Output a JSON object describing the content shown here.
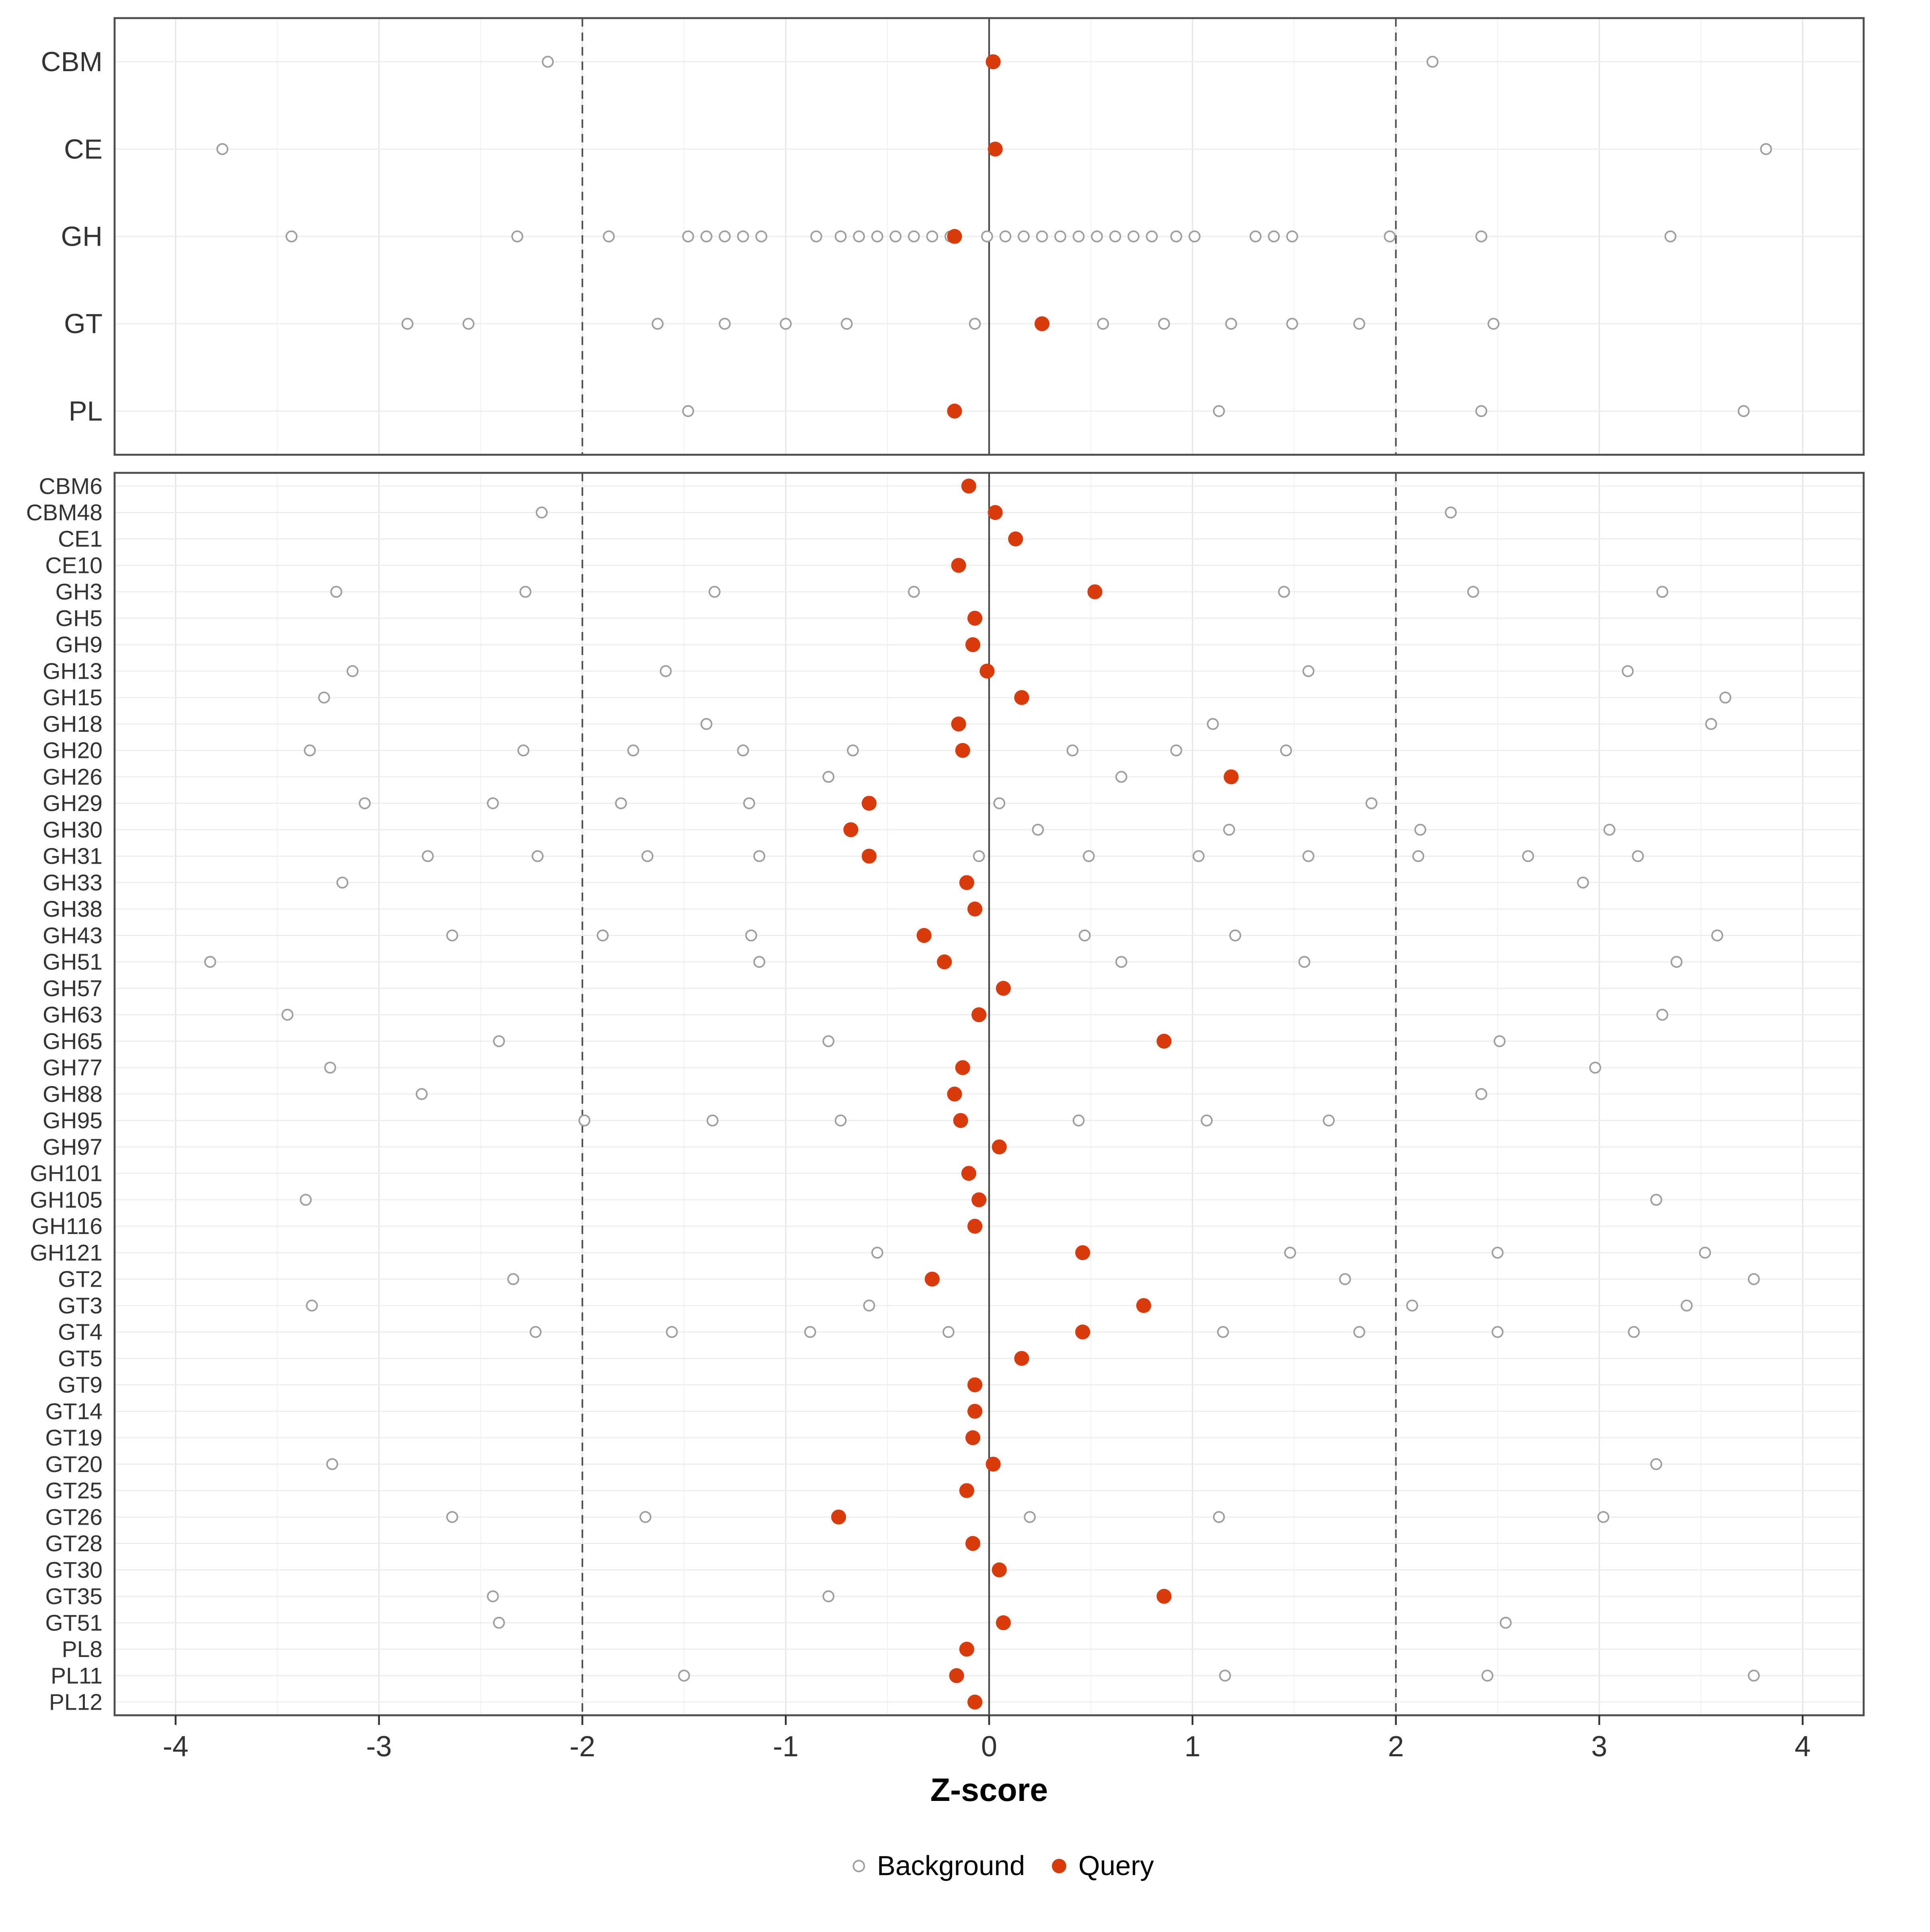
{
  "chart_data": {
    "type": "scatter",
    "title": "",
    "xlabel": "Z-score",
    "ylabel": "",
    "xlim": [
      -4.3,
      4.3
    ],
    "x_ticks": [
      -4,
      -3,
      -2,
      -1,
      0,
      1,
      2,
      3,
      4
    ],
    "grid": true,
    "reference_lines": {
      "solid": [
        0
      ],
      "dashed": [
        -2,
        2
      ]
    },
    "query_color": "#d93b0c",
    "background_stroke_color": "#9e9e9e",
    "legend": {
      "position": "bottom",
      "entries": [
        {
          "label": "Background",
          "marker": "open-circle"
        },
        {
          "label": "Query",
          "marker": "filled-circle"
        }
      ]
    },
    "panels": [
      {
        "name": "family-summary",
        "rows": [
          {
            "label": "CBM",
            "query": 0.02,
            "background": [
              -2.17,
              2.18
            ]
          },
          {
            "label": "CE",
            "query": 0.03,
            "background": [
              -3.77,
              3.82
            ]
          },
          {
            "label": "GH",
            "query": -0.17,
            "background": [
              -3.43,
              -2.32,
              -1.87,
              -1.48,
              -1.39,
              -1.3,
              -1.21,
              -1.12,
              -0.85,
              -0.73,
              -0.64,
              -0.55,
              -0.46,
              -0.37,
              -0.28,
              -0.19,
              -0.01,
              0.08,
              0.17,
              0.26,
              0.35,
              0.44,
              0.53,
              0.62,
              0.71,
              0.8,
              0.92,
              1.01,
              1.31,
              1.4,
              1.49,
              1.97,
              2.42,
              3.35
            ]
          },
          {
            "label": "GT",
            "query": 0.26,
            "background": [
              -2.86,
              -2.56,
              -1.63,
              -1.3,
              -1.0,
              -0.7,
              -0.07,
              0.56,
              0.86,
              1.19,
              1.49,
              1.82,
              2.48
            ]
          },
          {
            "label": "PL",
            "query": -0.17,
            "background": [
              -1.48,
              1.13,
              2.42,
              3.71
            ]
          }
        ]
      },
      {
        "name": "subfamily-detail",
        "rows": [
          {
            "label": "CBM6",
            "query": -0.1,
            "background": []
          },
          {
            "label": "CBM48",
            "query": 0.03,
            "background": [
              -2.2,
              2.27
            ]
          },
          {
            "label": "CE1",
            "query": 0.13,
            "background": []
          },
          {
            "label": "CE10",
            "query": -0.15,
            "background": []
          },
          {
            "label": "GH3",
            "query": 0.52,
            "background": [
              -3.21,
              -2.28,
              -1.35,
              -0.37,
              1.45,
              2.38,
              3.31
            ]
          },
          {
            "label": "GH5",
            "query": -0.07,
            "background": []
          },
          {
            "label": "GH9",
            "query": -0.08,
            "background": []
          },
          {
            "label": "GH13",
            "query": -0.01,
            "background": [
              -3.13,
              -1.59,
              1.57,
              3.14
            ]
          },
          {
            "label": "GH15",
            "query": 0.16,
            "background": [
              -3.27,
              3.62
            ]
          },
          {
            "label": "GH18",
            "query": -0.15,
            "background": [
              -1.39,
              1.1,
              3.55
            ]
          },
          {
            "label": "GH20",
            "query": -0.13,
            "background": [
              -3.34,
              -2.29,
              -1.75,
              -1.21,
              -0.67,
              0.41,
              0.92,
              1.46
            ]
          },
          {
            "label": "GH26",
            "query": 1.19,
            "background": [
              -0.79,
              0.65
            ]
          },
          {
            "label": "GH29",
            "query": -0.59,
            "background": [
              -3.07,
              -2.44,
              -1.81,
              -1.18,
              0.05,
              1.88
            ]
          },
          {
            "label": "GH30",
            "query": -0.68,
            "background": [
              0.24,
              1.18,
              2.12,
              3.05
            ]
          },
          {
            "label": "GH31",
            "query": -0.59,
            "background": [
              -2.76,
              -2.22,
              -1.68,
              -1.13,
              -0.05,
              0.49,
              1.03,
              1.57,
              2.11,
              2.65,
              3.19
            ]
          },
          {
            "label": "GH33",
            "query": -0.11,
            "background": [
              -3.18,
              2.92
            ]
          },
          {
            "label": "GH38",
            "query": -0.07,
            "background": []
          },
          {
            "label": "GH43",
            "query": -0.32,
            "background": [
              -2.64,
              -1.9,
              -1.17,
              0.47,
              1.21,
              3.58
            ]
          },
          {
            "label": "GH51",
            "query": -0.22,
            "background": [
              -3.83,
              -1.13,
              0.65,
              1.55,
              3.38
            ]
          },
          {
            "label": "GH57",
            "query": 0.07,
            "background": []
          },
          {
            "label": "GH63",
            "query": -0.05,
            "background": [
              -3.45,
              3.31
            ]
          },
          {
            "label": "GH65",
            "query": 0.86,
            "background": [
              -2.41,
              -0.79,
              2.51
            ]
          },
          {
            "label": "GH77",
            "query": -0.13,
            "background": [
              -3.24,
              2.98
            ]
          },
          {
            "label": "GH88",
            "query": -0.17,
            "background": [
              -2.79,
              2.42
            ]
          },
          {
            "label": "GH95",
            "query": -0.14,
            "background": [
              -1.99,
              -1.36,
              -0.73,
              0.44,
              1.07,
              1.67
            ]
          },
          {
            "label": "GH97",
            "query": 0.05,
            "background": []
          },
          {
            "label": "GH101",
            "query": -0.1,
            "background": []
          },
          {
            "label": "GH105",
            "query": -0.05,
            "background": [
              -3.36,
              3.28
            ]
          },
          {
            "label": "GH116",
            "query": -0.07,
            "background": []
          },
          {
            "label": "GH121",
            "query": 0.46,
            "background": [
              -0.55,
              1.48,
              2.5,
              3.52
            ]
          },
          {
            "label": "GT2",
            "query": -0.28,
            "background": [
              -2.34,
              1.75,
              3.76
            ]
          },
          {
            "label": "GT3",
            "query": 0.76,
            "background": [
              -3.33,
              -0.59,
              2.08,
              3.43
            ]
          },
          {
            "label": "GT4",
            "query": 0.46,
            "background": [
              -2.23,
              -1.56,
              -0.88,
              -0.2,
              1.15,
              1.82,
              2.5,
              3.17
            ]
          },
          {
            "label": "GT5",
            "query": 0.16,
            "background": []
          },
          {
            "label": "GT9",
            "query": -0.07,
            "background": []
          },
          {
            "label": "GT14",
            "query": -0.07,
            "background": []
          },
          {
            "label": "GT19",
            "query": -0.08,
            "background": []
          },
          {
            "label": "GT20",
            "query": 0.02,
            "background": [
              -3.23,
              3.28
            ]
          },
          {
            "label": "GT25",
            "query": -0.11,
            "background": []
          },
          {
            "label": "GT26",
            "query": -0.74,
            "background": [
              -2.64,
              -1.69,
              0.2,
              1.13,
              3.02
            ]
          },
          {
            "label": "GT28",
            "query": -0.08,
            "background": []
          },
          {
            "label": "GT30",
            "query": 0.05,
            "background": []
          },
          {
            "label": "GT35",
            "query": 0.86,
            "background": [
              -2.44,
              -0.79
            ]
          },
          {
            "label": "GT51",
            "query": 0.07,
            "background": [
              -2.41,
              2.54
            ]
          },
          {
            "label": "PL8",
            "query": -0.11,
            "background": []
          },
          {
            "label": "PL11",
            "query": -0.16,
            "background": [
              -1.5,
              1.16,
              2.45,
              3.76
            ]
          },
          {
            "label": "PL12",
            "query": -0.07,
            "background": []
          }
        ]
      }
    ]
  }
}
